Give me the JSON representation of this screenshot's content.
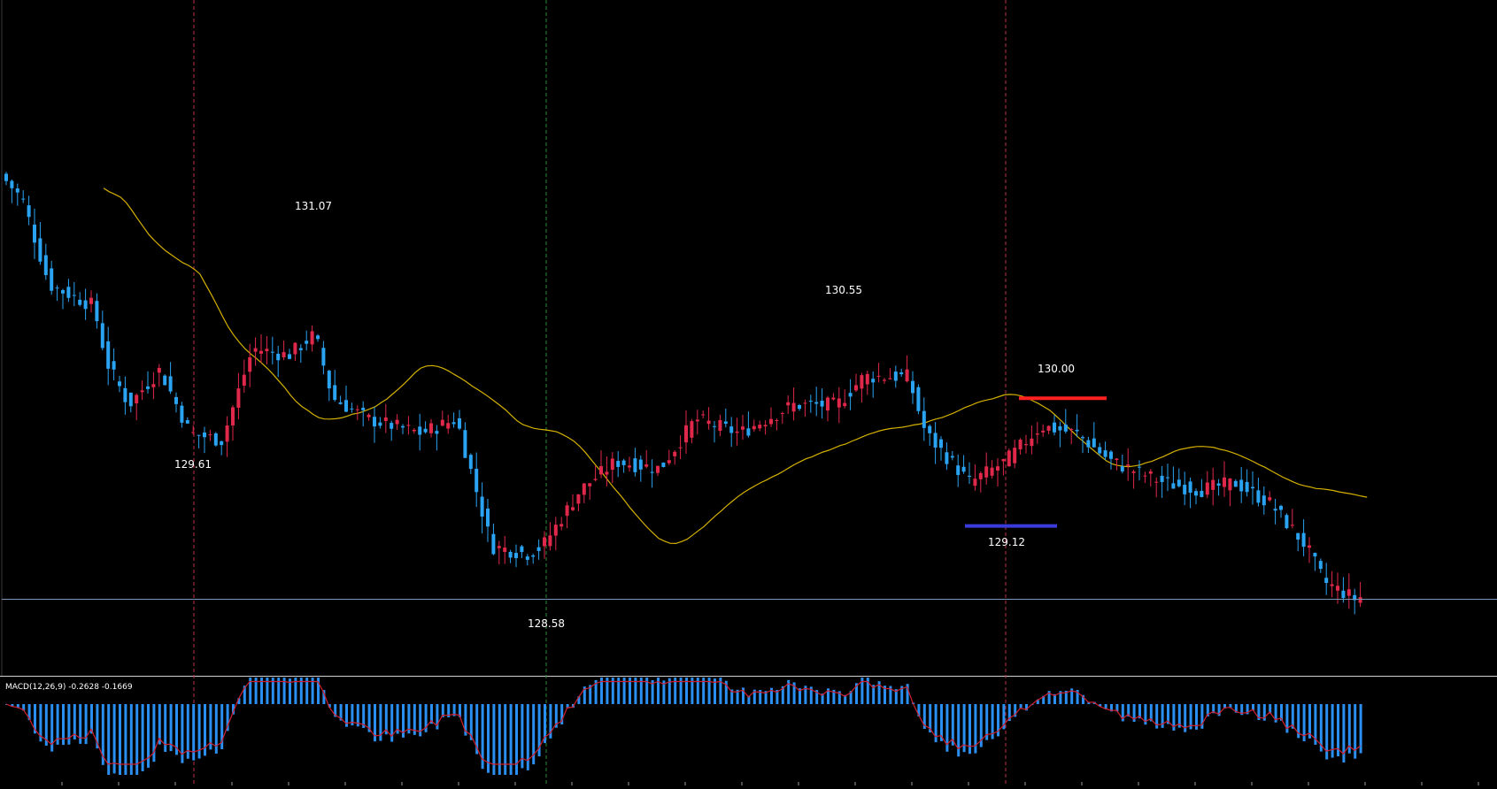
{
  "chart_data": {
    "type": "candlestick",
    "main": {
      "annotations": [
        {
          "label": "131.07",
          "kind": "high"
        },
        {
          "label": "129.61",
          "kind": "low"
        },
        {
          "label": "130.55",
          "kind": "high"
        },
        {
          "label": "128.58",
          "kind": "low"
        },
        {
          "label": "130.00",
          "kind": "resistance"
        },
        {
          "label": "129.12",
          "kind": "support"
        }
      ],
      "current_price": 128.58,
      "moving_average": "yellow line",
      "colors": {
        "bull": "#e0294a",
        "bear": "#2aa3f2",
        "ma": "#d4b100",
        "resistance": "#ff2020",
        "support": "#3b3bdb",
        "price_line": "#7a97b5",
        "session_divider": "#c0304a",
        "session_divider_alt": "#2e8b3a"
      }
    },
    "indicator": {
      "label": "MACD(12,26,9) -0.2628 -0.1669",
      "name": "MACD",
      "params": [
        12,
        26,
        9
      ],
      "value": -0.2628,
      "signal": -0.1669,
      "colors": {
        "histogram": "#2a8ff0",
        "signal": "#d02030"
      }
    }
  }
}
